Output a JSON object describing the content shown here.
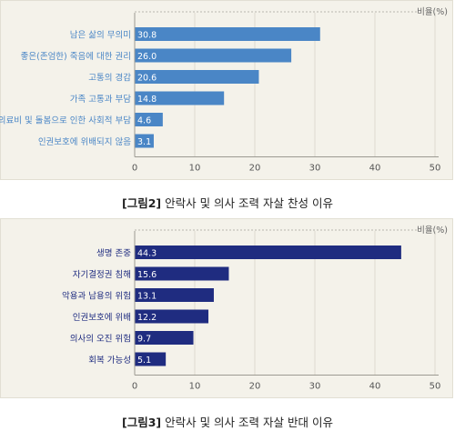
{
  "chart_data": [
    {
      "type": "bar",
      "orientation": "horizontal",
      "unit_label": "비율(%)",
      "xlim": [
        0,
        50
      ],
      "ticks": [
        0,
        10,
        20,
        30,
        40,
        50
      ],
      "color": "#4a86c6",
      "categories": [
        "남은 삶의 무의미",
        "좋은(존엄한) 죽음에 대한 권리",
        "고통의 경감",
        "가족 고통과 부담",
        "의료비 및 돌봄으로 인한 사회적 부담",
        "인권보호에 위배되지 않음"
      ],
      "values": [
        30.8,
        26.0,
        20.6,
        14.8,
        4.6,
        3.1
      ],
      "value_labels": [
        "30.8",
        "26.0",
        "20.6",
        "14.8",
        "4.6",
        "3.1"
      ],
      "caption_num": "[그림2]",
      "caption_text": " 안락사 및 의사 조력 자살 찬성 이유"
    },
    {
      "type": "bar",
      "orientation": "horizontal",
      "unit_label": "비율(%)",
      "xlim": [
        0,
        50
      ],
      "ticks": [
        0,
        10,
        20,
        30,
        40,
        50
      ],
      "color": "#1f2c80",
      "categories": [
        "생명 존중",
        "자기결정권 침해",
        "악용과 남용의 위험",
        "인권보호에 위배",
        "의사의 오진 위험",
        "회복 가능성"
      ],
      "values": [
        44.3,
        15.6,
        13.1,
        12.2,
        9.7,
        5.1
      ],
      "value_labels": [
        "44.3",
        "15.6",
        "13.1",
        "12.2",
        "9.7",
        "5.1"
      ],
      "caption_num": "[그림3]",
      "caption_text": " 안락사 및 의사 조력 자살 반대 이유"
    }
  ]
}
